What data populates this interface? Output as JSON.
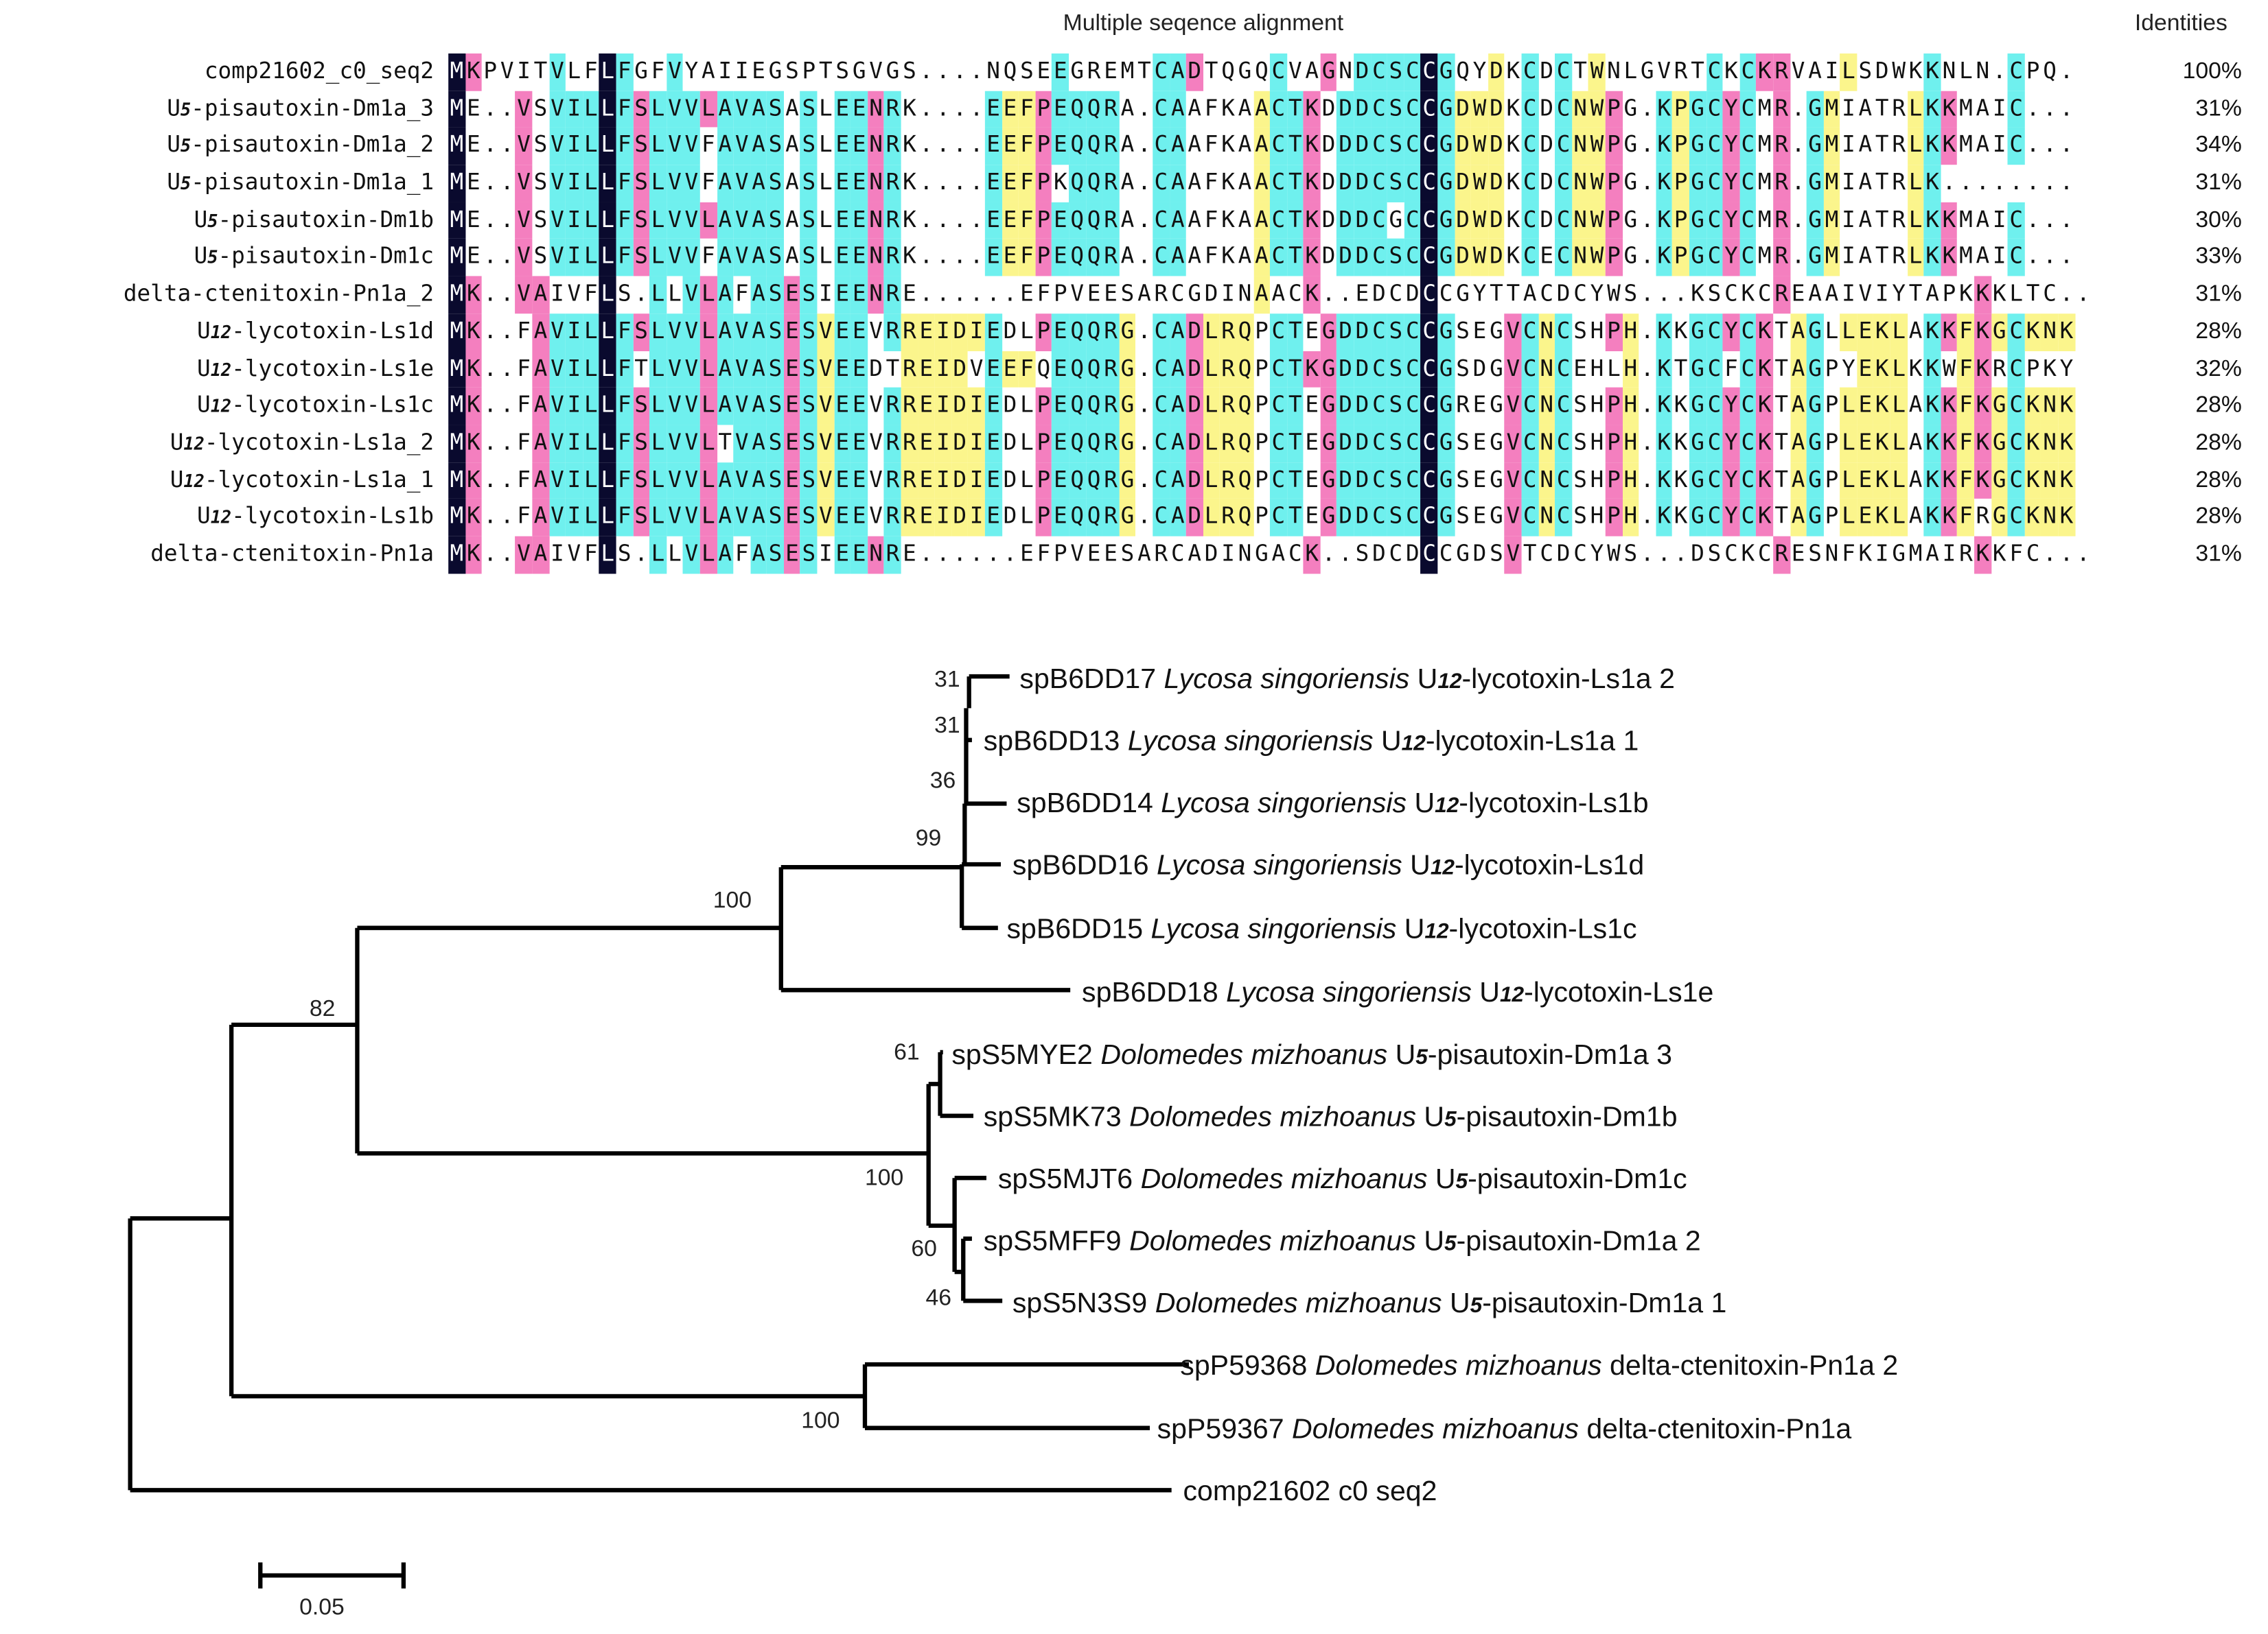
{
  "alignment": {
    "title": "Multiple seqence alignment",
    "identities_header": "Identities",
    "rows": [
      {
        "name_pre": "comp21602_c0_seq2",
        "name_sub": "",
        "name_post": "",
        "seq": "MKPVITVLFLFGFVYAIIEGSPTSGVGS....NQSEEGREMTCADTQGQCVAGNDCSCCGQYDKCDCTWNLGVRTCKCKRVAILSDWKKNLN.CPQ.",
        "identity": "100%"
      },
      {
        "name_pre": "U",
        "name_sub": "5",
        "name_post": "-pisautoxin-Dm1a_3",
        "seq": "ME..VSVILLFSLVVLAVASASLEENRK....EEFPEQQRA.CAAFKAACTKDDDCSCCGDWDKCDCNWPG.KPGCYCMR.GMIATRLKKMAIC...",
        "identity": "31%"
      },
      {
        "name_pre": "U",
        "name_sub": "5",
        "name_post": "-pisautoxin-Dm1a_2",
        "seq": "ME..VSVILLFSLVVFAVASASLEENRK....EEFPEQQRA.CAAFKAACTKDDDCSCCGDWDKCDCNWPG.KPGCYCMR.GMIATRLKKMAIC...",
        "identity": "34%"
      },
      {
        "name_pre": "U",
        "name_sub": "5",
        "name_post": "-pisautoxin-Dm1a_1",
        "seq": "ME..VSVILLFSLVVFAVASASLEENRK....EEFPKQQRA.CAAFKAACTKDDDCSCCGDWDKCDCNWPG.KPGCYCMR.GMIATRLK........",
        "identity": "31%"
      },
      {
        "name_pre": "U",
        "name_sub": "5",
        "name_post": "-pisautoxin-Dm1b",
        "seq": "ME..VSVILLFSLVVLAVASASLEENRK....EEFPEQQRA.CAAFKAACTKDDDCGCCGDWDKCDCNWPG.KPGCYCMR.GMIATRLKKMAIC...",
        "identity": "30%"
      },
      {
        "name_pre": "U",
        "name_sub": "5",
        "name_post": "-pisautoxin-Dm1c",
        "seq": "ME..VSVILLFSLVVFAVASASLEENRK....EEFPEQQRA.CAAFKAACTKDDDCSCCGDWDKCECNWPG.KPGCYCMR.GMIATRLKKMAIC...",
        "identity": "33%"
      },
      {
        "name_pre": "delta-ctenitoxin-Pn1a_2",
        "name_sub": "",
        "name_post": "",
        "seq": "MK..VAIVFLS.LLVLAFASESIEENRE......EFPVEESARCGDINAACK..EDCDCCGYTTACDCYWS...KSCKCREAAIVIYTAPKKKLTC..",
        "identity": "31%"
      },
      {
        "name_pre": "U",
        "name_sub": "12",
        "name_post": "-lycotoxin-Ls1d",
        "seq": "MK..FAVILLFSLVVLAVASESVEEVRREIDIEDLPEQQRG.CADLRQPCTEGDDCSCCGSEGVCNCSHPH.KKGCYCKTAGLLEKLAKKFKGCKNK",
        "identity": "28%"
      },
      {
        "name_pre": "U",
        "name_sub": "12",
        "name_post": "-lycotoxin-Ls1e",
        "seq": "MK..FAVILLFTLVVLAVASESVEEDTREIDVEEFQEQQRG.CADLRQPCTKGDDCSCCGSDGVCNCEHLH.KTGCFCKTAGPYEKLKKWFKRCPKY",
        "identity": "32%"
      },
      {
        "name_pre": "U",
        "name_sub": "12",
        "name_post": "-lycotoxin-Ls1c",
        "seq": "MK..FAVILLFSLVVLAVASESVEEVRREIDIEDLPEQQRG.CADLRQPCTEGDDCSCCGREGVCNCSHPH.KKGCYCKTAGPLEKLAKKFKGCKNK",
        "identity": "28%"
      },
      {
        "name_pre": "U",
        "name_sub": "12",
        "name_post": "-lycotoxin-Ls1a_2",
        "seq": "MK..FAVILLFSLVVLTVASESVEEVRREIDIEDLPEQQRG.CADLRQPCTEGDDCSCCGSEGVCNCSHPH.KKGCYCKTAGPLEKLAKKFKGCKNK",
        "identity": "28%"
      },
      {
        "name_pre": "U",
        "name_sub": "12",
        "name_post": "-lycotoxin-Ls1a_1",
        "seq": "MK..FAVILLFSLVVLAVASESVEEVRREIDIEDLPEQQRG.CADLRQPCTEGDDCSCCGSEGVCNCSHPH.KKGCYCKTAGPLEKLAKKFKGCKNK",
        "identity": "28%"
      },
      {
        "name_pre": "U",
        "name_sub": "12",
        "name_post": "-lycotoxin-Ls1b",
        "seq": "MK..FAVILLFSLVVLAVASESVEEVRREIDIEDLPEQQRG.CADLRQPCTEGDDCSCCGSEGVCNCSHPH.KKGCYCKTAGPLEKLAKKFRGCKNK",
        "identity": "28%"
      },
      {
        "name_pre": "delta-ctenitoxin-Pn1a",
        "name_sub": "",
        "name_post": "",
        "seq": "MK..VAIVFLS.LLVLAFASESIEENRE......EFPVEESARCADINGACK..SDCDCCGDSVTCDCYWS...DSCKCRESNFKIGMAIRKKFC...",
        "identity": "31%"
      }
    ]
  },
  "tree": {
    "leaves": [
      {
        "acc": "spB6DD17",
        "genus": "Lycosa",
        "species": "singoriensis",
        "prot_pre": "U",
        "prot_sub": "12",
        "prot_post": "-lycotoxin-Ls1a  2"
      },
      {
        "acc": "spB6DD13",
        "genus": "Lycosa",
        "species": "singoriensis",
        "prot_pre": "U",
        "prot_sub": "12",
        "prot_post": "-lycotoxin-Ls1a  1"
      },
      {
        "acc": "spB6DD14",
        "genus": "Lycosa",
        "species": "singoriensis",
        "prot_pre": "U",
        "prot_sub": "12",
        "prot_post": "-lycotoxin-Ls1b"
      },
      {
        "acc": "spB6DD16",
        "genus": "Lycosa",
        "species": "singoriensis",
        "prot_pre": "U",
        "prot_sub": "12",
        "prot_post": "-lycotoxin-Ls1d"
      },
      {
        "acc": "spB6DD15",
        "genus": "Lycosa",
        "species": "singoriensis",
        "prot_pre": "U",
        "prot_sub": "12",
        "prot_post": "-lycotoxin-Ls1c"
      },
      {
        "acc": "spB6DD18",
        "genus": "Lycosa",
        "species": "singoriensis",
        "prot_pre": "U",
        "prot_sub": "12",
        "prot_post": "-lycotoxin-Ls1e"
      },
      {
        "acc": "spS5MYE2",
        "genus": "Dolomedes",
        "species": "mizhoanus",
        "prot_pre": "U",
        "prot_sub": "5",
        "prot_post": "-pisautoxin-Dm1a  3"
      },
      {
        "acc": "spS5MK73",
        "genus": "Dolomedes",
        "species": "mizhoanus",
        "prot_pre": "U",
        "prot_sub": "5",
        "prot_post": "-pisautoxin-Dm1b"
      },
      {
        "acc": "spS5MJT6",
        "genus": "Dolomedes",
        "species": "mizhoanus",
        "prot_pre": "U",
        "prot_sub": "5",
        "prot_post": "-pisautoxin-Dm1c"
      },
      {
        "acc": "spS5MFF9",
        "genus": "Dolomedes",
        "species": "mizhoanus",
        "prot_pre": "U",
        "prot_sub": "5",
        "prot_post": "-pisautoxin-Dm1a  2"
      },
      {
        "acc": "spS5N3S9",
        "genus": "Dolomedes",
        "species": "mizhoanus",
        "prot_pre": "U",
        "prot_sub": "5",
        "prot_post": "-pisautoxin-Dm1a  1"
      },
      {
        "acc": "spP59368",
        "genus": "Dolomedes",
        "species": "mizhoanus",
        "prot_pre": "delta-ctenitoxin-Pn1a  2",
        "prot_sub": "",
        "prot_post": ""
      },
      {
        "acc": "spP59367",
        "genus": "Dolomedes",
        "species": "mizhoanus",
        "prot_pre": "delta-ctenitoxin-Pn1a",
        "prot_sub": "",
        "prot_post": ""
      },
      {
        "acc": "comp21602  c0  seq2",
        "genus": "",
        "species": "",
        "prot_pre": "",
        "prot_sub": "",
        "prot_post": ""
      }
    ],
    "bootstrap": [
      "31",
      "31",
      "36",
      "99",
      "100",
      "82",
      "61",
      "100",
      "60",
      "46",
      "100"
    ],
    "scale_label": "0.05"
  },
  "colors": {
    "black": "#0a0a2e",
    "cyan": "#6ff0ee",
    "magenta": "#f47fbf",
    "yellow": "#fbf58c"
  }
}
